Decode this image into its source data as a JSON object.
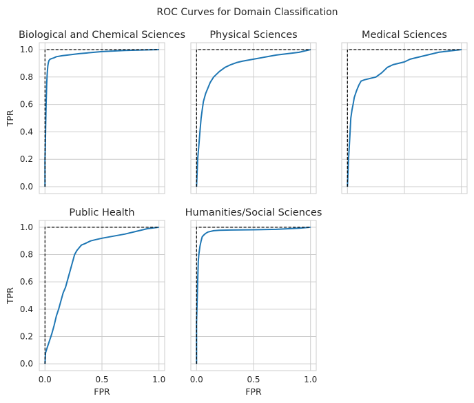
{
  "figure": {
    "suptitle": "ROC Curves for Domain Classification",
    "accent_color": "#1f77b4",
    "reference_color": "#000000"
  },
  "chart_data": [
    {
      "type": "line",
      "title": "Biological and Chemical Sciences",
      "xlabel": "",
      "ylabel": "TPR",
      "xlim": [
        -0.05,
        1.05
      ],
      "ylim": [
        -0.05,
        1.05
      ],
      "xticks": [
        0.0,
        0.5,
        1.0
      ],
      "yticks": [
        0.0,
        0.2,
        0.4,
        0.6,
        0.8,
        1.0
      ],
      "xtick_labels": [
        "0.0",
        "0.5",
        "1.0"
      ],
      "ytick_labels": [
        "0.0",
        "0.2",
        "0.4",
        "0.6",
        "0.8",
        "1.0"
      ],
      "show_xtick_labels": false,
      "show_ytick_labels": true,
      "grid": true,
      "series": [
        {
          "style": "solid",
          "x": [
            0,
            0,
            0.003,
            0.006,
            0.01,
            0.015,
            0.02,
            0.025,
            0.03,
            0.035,
            0.045,
            0.06,
            0.08,
            0.1,
            0.15,
            0.2,
            0.3,
            0.5,
            0.7,
            0.9,
            1.0
          ],
          "y": [
            0,
            0.2,
            0.3,
            0.45,
            0.6,
            0.75,
            0.83,
            0.88,
            0.905,
            0.92,
            0.93,
            0.935,
            0.94,
            0.948,
            0.955,
            0.96,
            0.97,
            0.985,
            0.993,
            0.998,
            1.0
          ]
        },
        {
          "style": "dashed",
          "x": [
            0,
            0,
            1
          ],
          "y": [
            0,
            1,
            1
          ]
        }
      ]
    },
    {
      "type": "line",
      "title": "Physical Sciences",
      "xlabel": "",
      "ylabel": "",
      "xlim": [
        -0.05,
        1.05
      ],
      "ylim": [
        -0.05,
        1.05
      ],
      "xticks": [
        0.0,
        0.5,
        1.0
      ],
      "yticks": [
        0.0,
        0.2,
        0.4,
        0.6,
        0.8,
        1.0
      ],
      "xtick_labels": [
        "0.0",
        "0.5",
        "1.0"
      ],
      "ytick_labels": [
        "0.0",
        "0.2",
        "0.4",
        "0.6",
        "0.8",
        "1.0"
      ],
      "show_xtick_labels": false,
      "show_ytick_labels": false,
      "grid": true,
      "series": [
        {
          "style": "solid",
          "x": [
            0,
            0.005,
            0.01,
            0.02,
            0.03,
            0.04,
            0.05,
            0.06,
            0.08,
            0.1,
            0.12,
            0.15,
            0.2,
            0.25,
            0.3,
            0.35,
            0.4,
            0.5,
            0.6,
            0.7,
            0.8,
            0.9,
            0.95,
            1.0
          ],
          "y": [
            0,
            0.1,
            0.2,
            0.3,
            0.4,
            0.5,
            0.56,
            0.62,
            0.68,
            0.72,
            0.76,
            0.8,
            0.84,
            0.87,
            0.89,
            0.905,
            0.915,
            0.93,
            0.945,
            0.96,
            0.97,
            0.98,
            0.99,
            1.0
          ]
        },
        {
          "style": "dashed",
          "x": [
            0,
            0,
            1
          ],
          "y": [
            0,
            1,
            1
          ]
        }
      ]
    },
    {
      "type": "line",
      "title": "Medical Sciences",
      "xlabel": "",
      "ylabel": "",
      "xlim": [
        -0.05,
        1.05
      ],
      "ylim": [
        -0.05,
        1.05
      ],
      "xticks": [
        0.0,
        0.5,
        1.0
      ],
      "yticks": [
        0.0,
        0.2,
        0.4,
        0.6,
        0.8,
        1.0
      ],
      "xtick_labels": [
        "0.0",
        "0.5",
        "1.0"
      ],
      "ytick_labels": [
        "0.0",
        "0.2",
        "0.4",
        "0.6",
        "0.8",
        "1.0"
      ],
      "show_xtick_labels": false,
      "show_ytick_labels": false,
      "grid": true,
      "series": [
        {
          "style": "solid",
          "x": [
            0,
            0.005,
            0.01,
            0.02,
            0.03,
            0.04,
            0.05,
            0.06,
            0.08,
            0.1,
            0.12,
            0.15,
            0.2,
            0.25,
            0.3,
            0.35,
            0.4,
            0.5,
            0.55,
            0.6,
            0.65,
            0.7,
            0.8,
            0.9,
            1.0
          ],
          "y": [
            0,
            0.1,
            0.2,
            0.35,
            0.5,
            0.56,
            0.6,
            0.65,
            0.7,
            0.74,
            0.77,
            0.78,
            0.79,
            0.8,
            0.83,
            0.87,
            0.89,
            0.91,
            0.93,
            0.94,
            0.95,
            0.96,
            0.98,
            0.99,
            1.0
          ]
        },
        {
          "style": "dashed",
          "x": [
            0,
            0,
            1
          ],
          "y": [
            0,
            1,
            1
          ]
        }
      ]
    },
    {
      "type": "line",
      "title": "Public Health",
      "xlabel": "FPR",
      "ylabel": "TPR",
      "xlim": [
        -0.05,
        1.05
      ],
      "ylim": [
        -0.05,
        1.05
      ],
      "xticks": [
        0.0,
        0.5,
        1.0
      ],
      "yticks": [
        0.0,
        0.2,
        0.4,
        0.6,
        0.8,
        1.0
      ],
      "xtick_labels": [
        "0.0",
        "0.5",
        "1.0"
      ],
      "ytick_labels": [
        "0.0",
        "0.2",
        "0.4",
        "0.6",
        "0.8",
        "1.0"
      ],
      "show_xtick_labels": true,
      "show_ytick_labels": true,
      "grid": true,
      "series": [
        {
          "style": "solid",
          "x": [
            0,
            0.005,
            0.02,
            0.04,
            0.06,
            0.08,
            0.1,
            0.12,
            0.14,
            0.16,
            0.18,
            0.2,
            0.22,
            0.24,
            0.26,
            0.28,
            0.3,
            0.32,
            0.35,
            0.4,
            0.45,
            0.5,
            0.6,
            0.7,
            0.8,
            0.9,
            1.0
          ],
          "y": [
            0,
            0.08,
            0.12,
            0.17,
            0.22,
            0.28,
            0.35,
            0.4,
            0.46,
            0.52,
            0.56,
            0.62,
            0.68,
            0.74,
            0.8,
            0.83,
            0.85,
            0.87,
            0.88,
            0.9,
            0.91,
            0.92,
            0.935,
            0.95,
            0.97,
            0.99,
            1.0
          ]
        },
        {
          "style": "dashed",
          "x": [
            0,
            0,
            1
          ],
          "y": [
            0,
            1,
            1
          ]
        }
      ]
    },
    {
      "type": "line",
      "title": "Humanities/Social Sciences",
      "xlabel": "FPR",
      "ylabel": "",
      "xlim": [
        -0.05,
        1.05
      ],
      "ylim": [
        -0.05,
        1.05
      ],
      "xticks": [
        0.0,
        0.5,
        1.0
      ],
      "yticks": [
        0.0,
        0.2,
        0.4,
        0.6,
        0.8,
        1.0
      ],
      "xtick_labels": [
        "0.0",
        "0.5",
        "1.0"
      ],
      "ytick_labels": [
        "0.0",
        "0.2",
        "0.4",
        "0.6",
        "0.8",
        "1.0"
      ],
      "show_xtick_labels": true,
      "show_ytick_labels": false,
      "grid": true,
      "series": [
        {
          "style": "solid",
          "x": [
            0,
            0,
            0.005,
            0.01,
            0.015,
            0.02,
            0.03,
            0.04,
            0.05,
            0.06,
            0.08,
            0.1,
            0.15,
            0.2,
            0.3,
            0.5,
            0.7,
            0.9,
            1.0
          ],
          "y": [
            0,
            0.3,
            0.45,
            0.6,
            0.75,
            0.8,
            0.86,
            0.9,
            0.93,
            0.94,
            0.955,
            0.965,
            0.975,
            0.978,
            0.98,
            0.982,
            0.985,
            0.993,
            1.0
          ]
        },
        {
          "style": "dashed",
          "x": [
            0,
            0,
            1
          ],
          "y": [
            0,
            1,
            1
          ]
        }
      ]
    }
  ]
}
